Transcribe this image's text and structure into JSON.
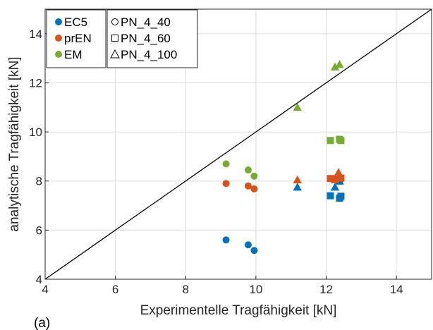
{
  "chart_data": {
    "type": "scatter",
    "xlabel": "Experimentelle Tragfähigkeit [kN]",
    "ylabel": "analytische Tragfähigkeit [kN]",
    "xlim": [
      4,
      15
    ],
    "ylim": [
      4,
      15
    ],
    "xticks": [
      4,
      6,
      8,
      10,
      12,
      14
    ],
    "yticks": [
      4,
      6,
      8,
      10,
      12,
      14
    ],
    "grid": true,
    "panel_label": "(a)",
    "reference_line": {
      "from": [
        4,
        4
      ],
      "to": [
        15,
        15
      ]
    },
    "legend_methods": {
      "position": "top-left",
      "entries": [
        {
          "name": "EC5",
          "color": "#0072BD"
        },
        {
          "name": "prEN",
          "color": "#D95319"
        },
        {
          "name": "EM",
          "color": "#77AC30"
        }
      ]
    },
    "legend_configs": {
      "position": "top-left",
      "entries": [
        {
          "name": "PN_4_40",
          "marker": "circle"
        },
        {
          "name": "PN_4_60",
          "marker": "square"
        },
        {
          "name": "PN_4_100",
          "marker": "triangle"
        }
      ]
    },
    "series": [
      {
        "name": "EC5",
        "config": "PN_4_40",
        "color": "#0072BD",
        "marker": "circle",
        "points": [
          [
            9.15,
            5.6
          ],
          [
            9.78,
            5.4
          ],
          [
            9.95,
            5.17
          ]
        ]
      },
      {
        "name": "EC5",
        "config": "PN_4_60",
        "color": "#0072BD",
        "marker": "square",
        "points": [
          [
            12.12,
            7.4
          ],
          [
            12.38,
            7.3
          ],
          [
            12.42,
            7.38
          ],
          [
            12.38,
            8.0
          ]
        ]
      },
      {
        "name": "EC5",
        "config": "PN_4_100",
        "color": "#0072BD",
        "marker": "triangle",
        "points": [
          [
            11.18,
            7.75
          ],
          [
            12.25,
            7.75
          ],
          [
            12.38,
            8.0
          ]
        ]
      },
      {
        "name": "prEN",
        "config": "PN_4_40",
        "color": "#D95319",
        "marker": "circle",
        "points": [
          [
            9.15,
            7.9
          ],
          [
            9.78,
            7.8
          ],
          [
            9.95,
            7.68
          ]
        ]
      },
      {
        "name": "prEN",
        "config": "PN_4_60",
        "color": "#D95319",
        "marker": "square",
        "points": [
          [
            12.12,
            8.1
          ],
          [
            12.25,
            8.05
          ],
          [
            12.42,
            8.12
          ]
        ]
      },
      {
        "name": "prEN",
        "config": "PN_4_100",
        "color": "#D95319",
        "marker": "triangle",
        "points": [
          [
            11.18,
            8.05
          ],
          [
            12.25,
            8.1
          ],
          [
            12.35,
            8.35
          ]
        ]
      },
      {
        "name": "EM",
        "config": "PN_4_40",
        "color": "#77AC30",
        "marker": "circle",
        "points": [
          [
            9.15,
            8.7
          ],
          [
            9.78,
            8.45
          ],
          [
            9.95,
            8.2
          ]
        ]
      },
      {
        "name": "EM",
        "config": "PN_4_60",
        "color": "#77AC30",
        "marker": "square",
        "points": [
          [
            12.12,
            9.65
          ],
          [
            12.38,
            9.7
          ],
          [
            12.42,
            9.65
          ]
        ]
      },
      {
        "name": "EM",
        "config": "PN_4_100",
        "color": "#77AC30",
        "marker": "triangle",
        "points": [
          [
            11.18,
            11.0
          ],
          [
            12.25,
            12.65
          ],
          [
            12.38,
            12.75
          ]
        ]
      }
    ]
  }
}
